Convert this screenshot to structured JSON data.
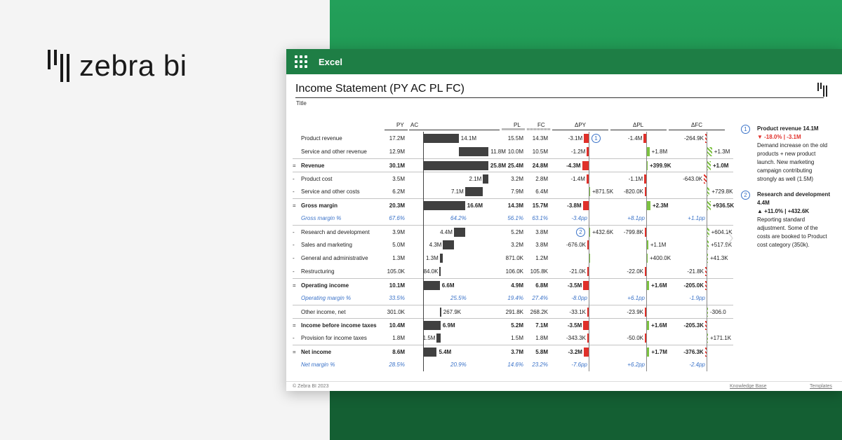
{
  "brand": {
    "name": "zebra bi"
  },
  "window": {
    "app_name": "Excel"
  },
  "report": {
    "title": "Income Statement (PY AC PL FC)",
    "subtitle": "Title"
  },
  "columns": {
    "py": "PY",
    "ac": "AC",
    "pl": "PL",
    "fc": "FC",
    "dpy": "ΔPY",
    "dpl": "ΔPL",
    "dfc": "ΔFC"
  },
  "colors": {
    "positive": "#7dc242",
    "negative": "#e0302a",
    "bar": "#404040",
    "percent": "#3a72c8",
    "window_bar": "#1e7e45"
  },
  "rows": [
    {
      "prefix": "",
      "label": "Product revenue",
      "py": "17.2M",
      "ac": "14.1M",
      "ac_value": 14.1,
      "pl": "15.5M",
      "fc": "14.3M",
      "dpy": "-3.1M",
      "dpy_value": -3.1,
      "dpl": "-1.4M",
      "dpl_value": -1.4,
      "dfc": "-264.9K",
      "dfc_value": -0.26,
      "type": "normal",
      "note": "1"
    },
    {
      "prefix": "",
      "label": "Service and other revenue",
      "py": "12.9M",
      "ac": "11.8M",
      "ac_value": 11.8,
      "pl": "10.0M",
      "fc": "10.5M",
      "dpy": "-1.2M",
      "dpy_value": -1.2,
      "dpl": "+1.8M",
      "dpl_value": 1.8,
      "dfc": "+1.3M",
      "dfc_value": 1.3,
      "type": "normal"
    },
    {
      "prefix": "=",
      "label": "Revenue",
      "py": "30.1M",
      "ac": "25.8M",
      "ac_value": 25.8,
      "pl": "25.4M",
      "fc": "24.8M",
      "dpy": "-4.3M",
      "dpy_value": -4.3,
      "dpl": "+399.9K",
      "dpl_value": 0.4,
      "dfc": "+1.0M",
      "dfc_value": 1.0,
      "type": "bold"
    },
    {
      "prefix": "-",
      "label": "Product cost",
      "py": "3.5M",
      "ac": "2.1M",
      "ac_value": 2.1,
      "pl": "3.2M",
      "fc": "2.8M",
      "dpy": "-1.4M",
      "dpy_value": -1.4,
      "dpl": "-1.1M",
      "dpl_value": -1.1,
      "dfc": "-643.0K",
      "dfc_value": -0.64,
      "type": "normal"
    },
    {
      "prefix": "-",
      "label": "Service and other costs",
      "py": "6.2M",
      "ac": "7.1M",
      "ac_value": 7.1,
      "pl": "7.9M",
      "fc": "6.4M",
      "dpy": "+871.5K",
      "dpy_value": 0.87,
      "dpl": "-820.0K",
      "dpl_value": -0.82,
      "dfc": "+729.8K",
      "dfc_value": 0.73,
      "type": "normal"
    },
    {
      "prefix": "=",
      "label": "Gross margin",
      "py": "20.3M",
      "ac": "16.6M",
      "ac_value": 16.6,
      "pl": "14.3M",
      "fc": "15.7M",
      "dpy": "-3.8M",
      "dpy_value": -3.8,
      "dpl": "+2.3M",
      "dpl_value": 2.3,
      "dfc": "+936.5K",
      "dfc_value": 0.94,
      "type": "bold"
    },
    {
      "prefix": "",
      "label": "Gross margin %",
      "py": "67.6%",
      "ac": "64.2%",
      "pl": "56.1%",
      "fc": "63.1%",
      "dpy": "-3.4pp",
      "dpl": "+8.1pp",
      "dfc": "+1.1pp",
      "type": "pct"
    },
    {
      "prefix": "-",
      "label": "Research and development",
      "py": "3.9M",
      "ac": "4.4M",
      "ac_value": 4.4,
      "pl": "5.2M",
      "fc": "3.8M",
      "dpy": "+432.6K",
      "dpy_value": 0.43,
      "dpl": "-799.8K",
      "dpl_value": -0.8,
      "dfc": "+604.1K",
      "dfc_value": 0.6,
      "type": "normal",
      "note": "2"
    },
    {
      "prefix": "-",
      "label": "Sales and marketing",
      "py": "5.0M",
      "ac": "4.3M",
      "ac_value": 4.3,
      "pl": "3.2M",
      "fc": "3.8M",
      "dpy": "-676.0K",
      "dpy_value": -0.68,
      "dpl": "+1.1M",
      "dpl_value": 1.1,
      "dfc": "+517.9K",
      "dfc_value": 0.52,
      "type": "normal"
    },
    {
      "prefix": "-",
      "label": "General and administrative",
      "py": "1.3M",
      "ac": "1.3M",
      "ac_value": 1.3,
      "pl": "871.0K",
      "fc": "1.2M",
      "dpy": "",
      "dpy_value": 0,
      "dpl": "+400.0K",
      "dpl_value": 0.4,
      "dfc": "+41.3K",
      "dfc_value": 0.04,
      "type": "normal"
    },
    {
      "prefix": "-",
      "label": "Restructuring",
      "py": "105.0K",
      "ac": "84.0K",
      "ac_value": 0.08,
      "pl": "106.0K",
      "fc": "105.8K",
      "dpy": "-21.0K",
      "dpy_value": -0.02,
      "dpl": "-22.0K",
      "dpl_value": -0.02,
      "dfc": "-21.8K",
      "dfc_value": -0.02,
      "type": "normal"
    },
    {
      "prefix": "=",
      "label": "Operating income",
      "py": "10.1M",
      "ac": "6.6M",
      "ac_value": 6.6,
      "pl": "4.9M",
      "fc": "6.8M",
      "dpy": "-3.5M",
      "dpy_value": -3.5,
      "dpl": "+1.6M",
      "dpl_value": 1.6,
      "dfc": "-205.0K",
      "dfc_value": -0.2,
      "type": "bold"
    },
    {
      "prefix": "",
      "label": "Operating margin %",
      "py": "33.5%",
      "ac": "25.5%",
      "pl": "19.4%",
      "fc": "27.4%",
      "dpy": "-8.0pp",
      "dpl": "+6.1pp",
      "dfc": "-1.9pp",
      "type": "pct"
    },
    {
      "prefix": "",
      "label": "Other income, net",
      "py": "301.0K",
      "ac": "267.9K",
      "ac_value": 0.27,
      "pl": "291.8K",
      "fc": "268.2K",
      "dpy": "-33.1K",
      "dpy_value": -0.03,
      "dpl": "-23.9K",
      "dpl_value": -0.02,
      "dfc": "-306.0",
      "dfc_value": 0,
      "type": "normal"
    },
    {
      "prefix": "=",
      "label": "Income before income taxes",
      "py": "10.4M",
      "ac": "6.9M",
      "ac_value": 6.9,
      "pl": "5.2M",
      "fc": "7.1M",
      "dpy": "-3.5M",
      "dpy_value": -3.5,
      "dpl": "+1.6M",
      "dpl_value": 1.6,
      "dfc": "-205.3K",
      "dfc_value": -0.2,
      "type": "bold"
    },
    {
      "prefix": "-",
      "label": "Provision for income taxes",
      "py": "1.8M",
      "ac": "1.5M",
      "ac_value": 1.5,
      "pl": "1.5M",
      "fc": "1.8M",
      "dpy": "-343.3K",
      "dpy_value": -0.34,
      "dpl": "-50.0K",
      "dpl_value": -0.05,
      "dfc": "+171.1K",
      "dfc_value": 0.17,
      "type": "normal"
    },
    {
      "prefix": "=",
      "label": "Net income",
      "py": "8.6M",
      "ac": "5.4M",
      "ac_value": 5.4,
      "pl": "3.7M",
      "fc": "5.8M",
      "dpy": "-3.2M",
      "dpy_value": -3.2,
      "dpl": "+1.7M",
      "dpl_value": 1.7,
      "dfc": "-376.3K",
      "dfc_value": -0.38,
      "type": "bold"
    },
    {
      "prefix": "",
      "label": "Net margin %",
      "py": "28.5%",
      "ac": "20.9%",
      "pl": "14.6%",
      "fc": "23.2%",
      "dpy": "-7.6pp",
      "dpl": "+6.2pp",
      "dfc": "-2.4pp",
      "type": "pct"
    }
  ],
  "notes": [
    {
      "num": "1",
      "title": "Product revenue 14.1M",
      "delta": "▼ -18.0% | -3.1M",
      "body": "Demand increase on the old products + new product launch. New marketing campaign contributing strongly as well (1.5M)"
    },
    {
      "num": "2",
      "title": "Research and development 4.4M",
      "delta": "▲ +11.0% | +432.6K",
      "body": "Reporting standard adjustment. Some of the costs are booked to Product cost category (350k)."
    }
  ],
  "footer": {
    "copyright": "© Zebra BI 2023",
    "kb": "Knowledge Base",
    "templates": "Templates"
  }
}
